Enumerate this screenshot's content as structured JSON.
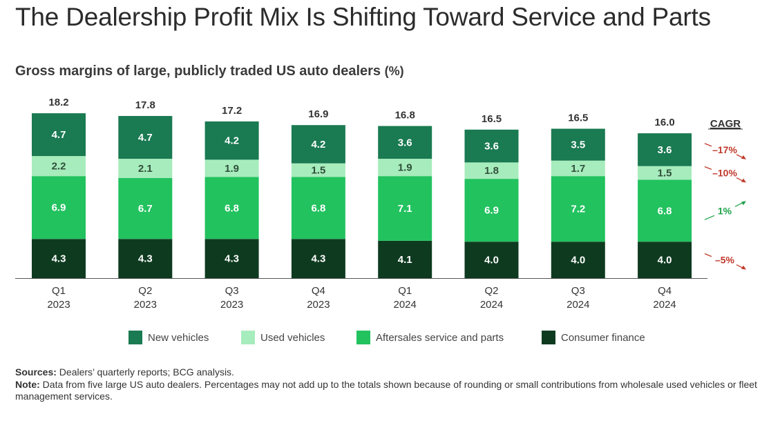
{
  "title": "The Dealership Profit Mix Is Shifting Toward Service and Parts",
  "subtitle": "Gross margins of large, publicly traded US auto dealers",
  "subtitle_unit": "(%)",
  "colors": {
    "new_vehicles": "#1a7a52",
    "used_vehicles": "#a7ecbc",
    "aftersales": "#22c25f",
    "consumer_finance": "#0e3b20",
    "cagr_negative": "#c0392b",
    "cagr_positive": "#1fa34a"
  },
  "chart_data": {
    "type": "bar",
    "stacked": true,
    "categories": [
      [
        "Q1",
        "2023"
      ],
      [
        "Q2",
        "2023"
      ],
      [
        "Q3",
        "2023"
      ],
      [
        "Q4",
        "2023"
      ],
      [
        "Q1",
        "2024"
      ],
      [
        "Q2",
        "2024"
      ],
      [
        "Q3",
        "2024"
      ],
      [
        "Q4",
        "2024"
      ]
    ],
    "totals": [
      "18.2",
      "17.8",
      "17.2",
      "16.9",
      "16.8",
      "16.5",
      "16.5",
      "16.0"
    ],
    "series": [
      {
        "key": "consumer_finance",
        "name": "Consumer finance",
        "values": [
          4.3,
          4.3,
          4.3,
          4.3,
          4.1,
          4.0,
          4.0,
          4.0
        ],
        "cagr": "–5%",
        "cagr_sign": "negative"
      },
      {
        "key": "aftersales",
        "name": "Aftersales service and parts",
        "values": [
          6.9,
          6.7,
          6.8,
          6.8,
          7.1,
          6.9,
          7.2,
          6.8
        ],
        "cagr": "1%",
        "cagr_sign": "positive"
      },
      {
        "key": "used_vehicles",
        "name": "Used vehicles",
        "values": [
          2.2,
          2.1,
          1.9,
          1.5,
          1.9,
          1.8,
          1.7,
          1.5
        ],
        "cagr": "–10%",
        "cagr_sign": "negative"
      },
      {
        "key": "new_vehicles",
        "name": "New vehicles",
        "values": [
          4.7,
          4.7,
          4.2,
          4.2,
          3.6,
          3.6,
          3.5,
          3.6
        ],
        "cagr": "–17%",
        "cagr_sign": "negative"
      }
    ],
    "legend_order": [
      "new_vehicles",
      "used_vehicles",
      "aftersales",
      "consumer_finance"
    ],
    "cagr_header": "CAGR",
    "ylim": [
      0,
      18.2
    ],
    "legend_position": "bottom"
  },
  "notes": {
    "sources_label": "Sources:",
    "sources_text": " Dealers’ quarterly reports; BCG analysis.",
    "note_label": "Note:",
    "note_text": " Data from five large US auto dealers. Percentages may not add up to the totals shown because of rounding or small contributions from wholesale used vehicles or fleet management services."
  }
}
